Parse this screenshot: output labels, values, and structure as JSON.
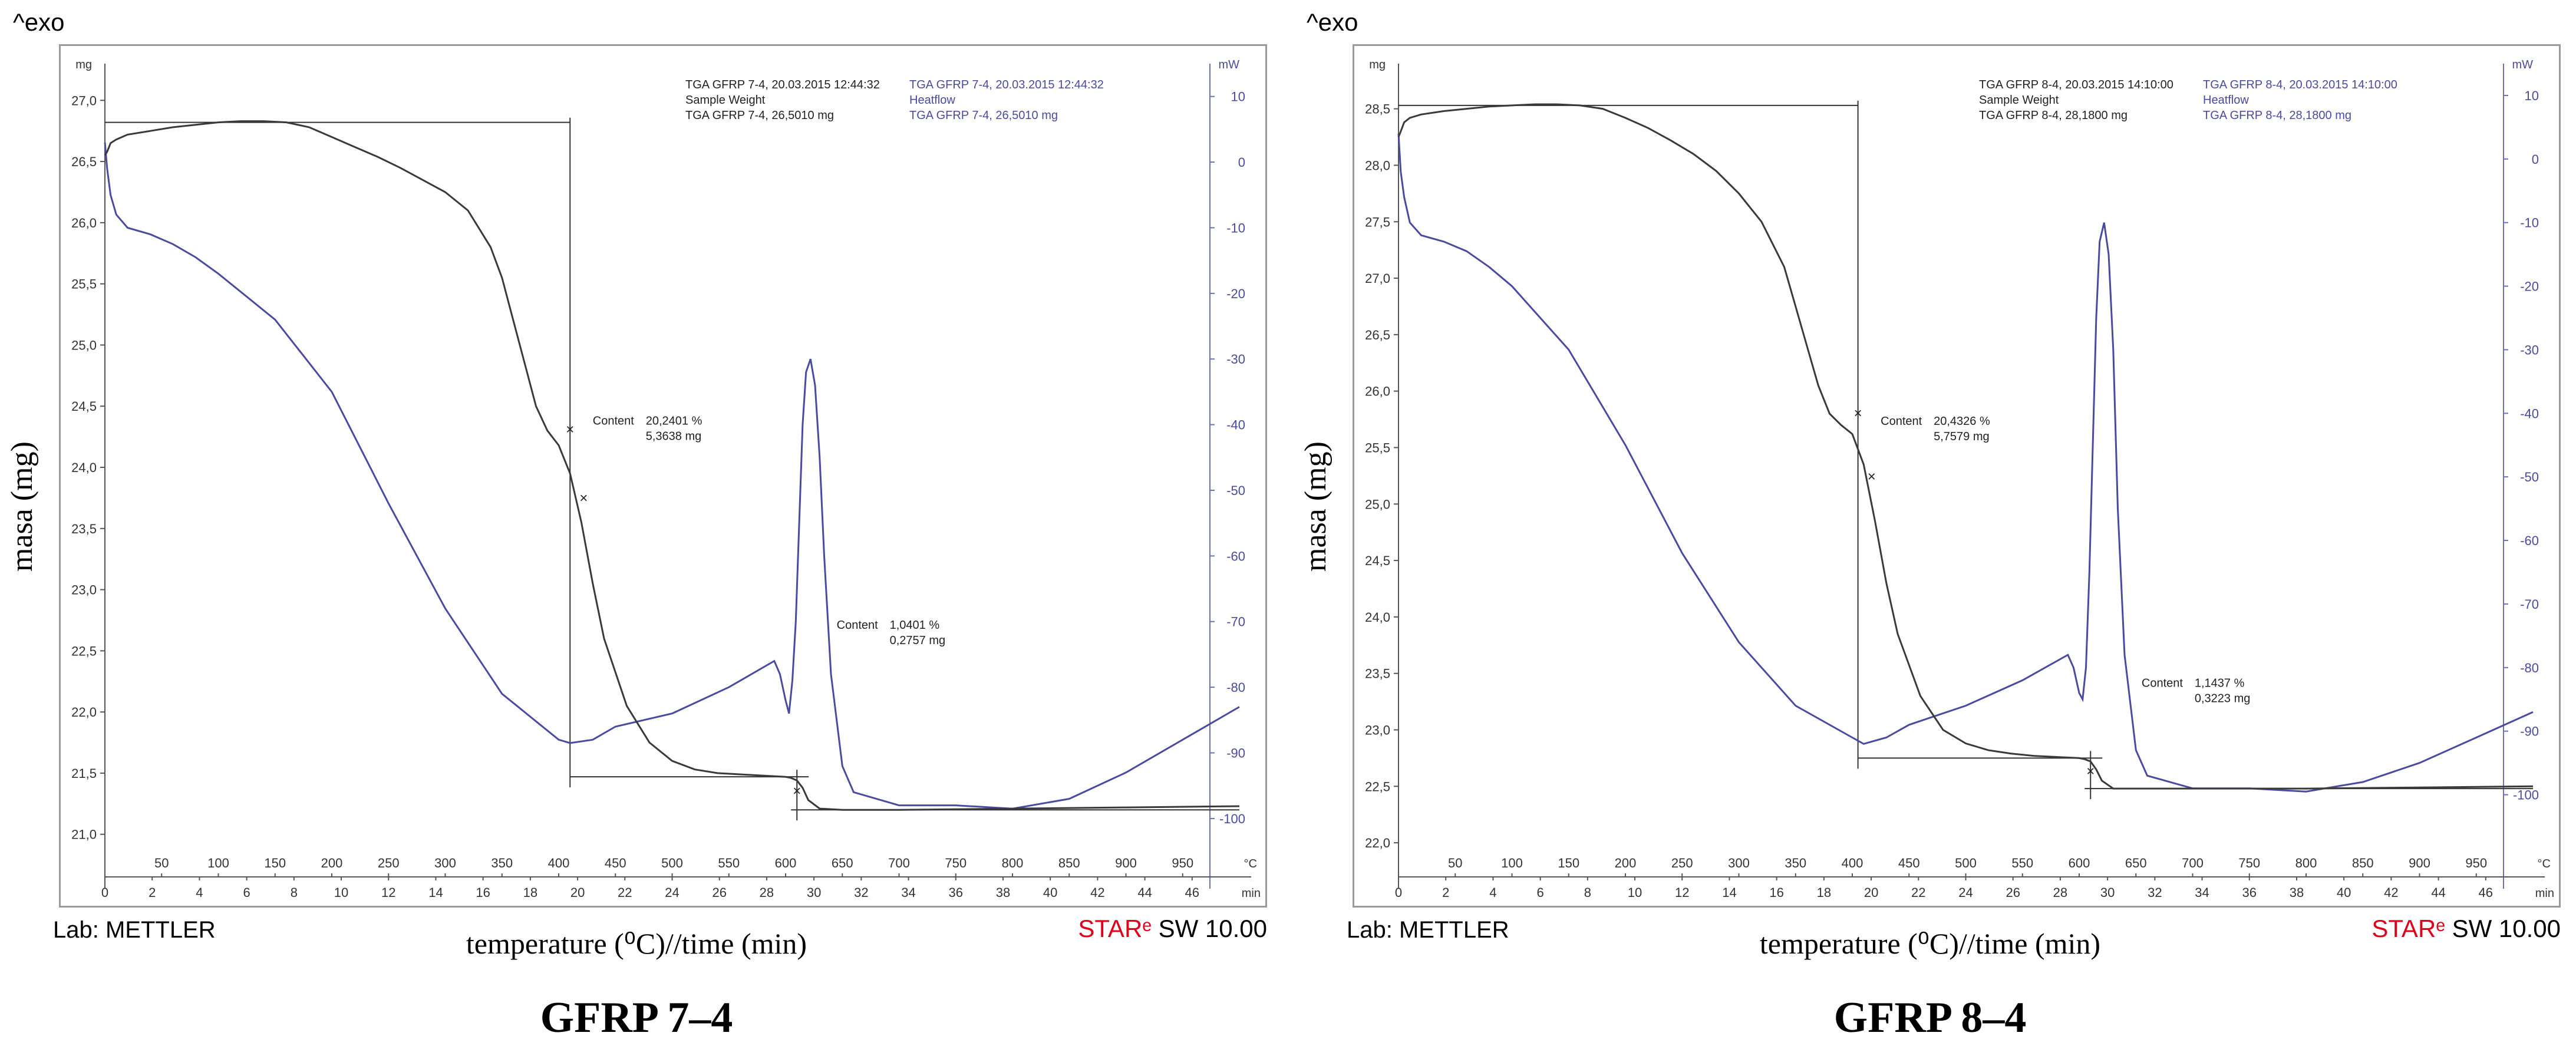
{
  "figure": {
    "brand_star": "STARᵉ",
    "brand_sw": "SW 10.00",
    "exo_label": "^exo",
    "lab_label": "Lab: METTLER",
    "ylabel": "masa (mg)",
    "xlabel": "temperature (⁰C)//time (min)"
  },
  "chart_data": [
    {
      "type": "line",
      "caption": "GFRP 7–4",
      "legend_black": [
        "TGA GFRP 7-4, 20.03.2015 12:44:32",
        "Sample Weight",
        "TGA GFRP 7-4, 26,5010 mg"
      ],
      "legend_blue": [
        "TGA GFRP 7-4, 20.03.2015 12:44:32",
        "Heatflow",
        "TGA GFRP 7-4, 26,5010 mg"
      ],
      "y_unit": "mg",
      "y2_unit": "mW",
      "ylim": [
        20.7,
        27.3
      ],
      "y2lim": [
        -108,
        15
      ],
      "xlim_temp": [
        0,
        1000
      ],
      "xlim_time": [
        0,
        48
      ],
      "y_ticks": [
        "27,0",
        "26,5",
        "26,0",
        "25,5",
        "25,0",
        "24,5",
        "24,0",
        "23,5",
        "23,0",
        "22,5",
        "22,0",
        "21,5",
        "21,0"
      ],
      "y_tick_values": [
        27.0,
        26.5,
        26.0,
        25.5,
        25.0,
        24.5,
        24.0,
        23.5,
        23.0,
        22.5,
        22.0,
        21.5,
        21.0
      ],
      "y2_ticks": [
        "10",
        "0",
        "-10",
        "-20",
        "-30",
        "-40",
        "-50",
        "-60",
        "-70",
        "-80",
        "-90",
        "-100"
      ],
      "y2_tick_values": [
        10,
        0,
        -10,
        -20,
        -30,
        -40,
        -50,
        -60,
        -70,
        -80,
        -90,
        -100
      ],
      "temp_ticks": [
        "50",
        "100",
        "150",
        "200",
        "250",
        "300",
        "350",
        "400",
        "450",
        "500",
        "550",
        "600",
        "650",
        "700",
        "750",
        "800",
        "850",
        "900",
        "950"
      ],
      "temp_tick_values": [
        50,
        100,
        150,
        200,
        250,
        300,
        350,
        400,
        450,
        500,
        550,
        600,
        650,
        700,
        750,
        800,
        850,
        900,
        950
      ],
      "temp_end_label": "°C",
      "time_ticks": [
        "0",
        "2",
        "4",
        "6",
        "8",
        "10",
        "12",
        "14",
        "16",
        "18",
        "20",
        "22",
        "24",
        "26",
        "28",
        "30",
        "32",
        "34",
        "36",
        "38",
        "40",
        "42",
        "44",
        "46"
      ],
      "time_tick_values": [
        0,
        2,
        4,
        6,
        8,
        10,
        12,
        14,
        16,
        18,
        20,
        22,
        24,
        26,
        28,
        30,
        32,
        34,
        36,
        38,
        40,
        42,
        44,
        46
      ],
      "time_end_label": "min",
      "annotation1": [
        "Content",
        "20,2401 %",
        "5,3638 mg"
      ],
      "annotation1_pos": [
        430,
        24.35
      ],
      "annotation2": [
        "Content",
        "1,0401 %",
        "0,2757 mg"
      ],
      "annotation2_pos": [
        645,
        22.68
      ],
      "step1": {
        "x": 410,
        "y_top": 26.82,
        "y_bottom": 21.47,
        "x_left": 0
      },
      "step2": {
        "x": 610,
        "y_top": 21.47,
        "y_bottom": 21.2,
        "x_right": 1000
      },
      "mass_series": {
        "name": "Sample Weight",
        "x": [
          0,
          2,
          5,
          10,
          20,
          40,
          60,
          80,
          100,
          120,
          140,
          160,
          180,
          200,
          220,
          240,
          260,
          280,
          300,
          320,
          340,
          350,
          360,
          370,
          380,
          390,
          400,
          410,
          420,
          430,
          440,
          460,
          480,
          500,
          520,
          540,
          560,
          580,
          600,
          605,
          610,
          615,
          620,
          630,
          650,
          700,
          800,
          900,
          1000
        ],
        "y": [
          26.55,
          26.58,
          26.65,
          26.68,
          26.72,
          26.75,
          26.78,
          26.8,
          26.82,
          26.83,
          26.83,
          26.82,
          26.78,
          26.7,
          26.62,
          26.54,
          26.45,
          26.35,
          26.25,
          26.1,
          25.8,
          25.55,
          25.2,
          24.85,
          24.5,
          24.3,
          24.18,
          23.95,
          23.55,
          23.05,
          22.6,
          22.05,
          21.75,
          21.6,
          21.53,
          21.5,
          21.49,
          21.48,
          21.47,
          21.46,
          21.44,
          21.38,
          21.28,
          21.21,
          21.2,
          21.2,
          21.21,
          21.22,
          21.23
        ]
      },
      "heatflow_series": {
        "name": "Heatflow",
        "x": [
          0,
          2,
          5,
          10,
          20,
          40,
          60,
          80,
          100,
          150,
          200,
          250,
          300,
          350,
          400,
          410,
          430,
          450,
          500,
          550,
          590,
          595,
          600,
          603,
          606,
          609,
          612,
          615,
          618,
          622,
          626,
          630,
          634,
          640,
          650,
          660,
          700,
          750,
          800,
          850,
          900,
          950,
          1000
        ],
        "y": [
          3,
          -1,
          -5,
          -8,
          -10,
          -11,
          -12.5,
          -14.5,
          -17,
          -24,
          -35,
          -52,
          -68,
          -81,
          -88,
          -88.5,
          -88,
          -86,
          -84,
          -80,
          -76,
          -78,
          -82,
          -84,
          -79,
          -70,
          -55,
          -40,
          -32,
          -30,
          -34,
          -45,
          -60,
          -78,
          -92,
          -96,
          -98,
          -98,
          -98.5,
          -97,
          -93,
          -88,
          -83
        ]
      }
    },
    {
      "type": "line",
      "caption": "GFRP 8–4",
      "legend_black": [
        "TGA GFRP 8-4, 20.03.2015 14:10:00",
        "Sample Weight",
        "TGA GFRP 8-4, 28,1800 mg"
      ],
      "legend_blue": [
        "TGA GFRP 8-4, 20.03.2015 14:10:00",
        "Heatflow",
        "TGA GFRP 8-4, 28,1800 mg"
      ],
      "y_unit": "mg",
      "y2_unit": "mW",
      "ylim": [
        21.75,
        28.9
      ],
      "y2lim": [
        -112,
        15
      ],
      "xlim_temp": [
        0,
        1000
      ],
      "xlim_time": [
        0,
        48
      ],
      "y_ticks": [
        "28,5",
        "28,0",
        "27,5",
        "27,0",
        "26,5",
        "26,0",
        "25,5",
        "25,0",
        "24,5",
        "24,0",
        "23,5",
        "23,0",
        "22,5",
        "22,0"
      ],
      "y_tick_values": [
        28.5,
        28.0,
        27.5,
        27.0,
        26.5,
        26.0,
        25.5,
        25.0,
        24.5,
        24.0,
        23.5,
        23.0,
        22.5,
        22.0
      ],
      "y2_ticks": [
        "10",
        "0",
        "-10",
        "-20",
        "-30",
        "-40",
        "-50",
        "-60",
        "-70",
        "-80",
        "-90",
        "-100"
      ],
      "y2_tick_values": [
        10,
        0,
        -10,
        -20,
        -30,
        -40,
        -50,
        -60,
        -70,
        -80,
        -90,
        -100
      ],
      "temp_ticks": [
        "50",
        "100",
        "150",
        "200",
        "250",
        "300",
        "350",
        "400",
        "450",
        "500",
        "550",
        "600",
        "650",
        "700",
        "750",
        "800",
        "850",
        "900",
        "950"
      ],
      "temp_tick_values": [
        50,
        100,
        150,
        200,
        250,
        300,
        350,
        400,
        450,
        500,
        550,
        600,
        650,
        700,
        750,
        800,
        850,
        900,
        950
      ],
      "temp_end_label": "°C",
      "time_ticks": [
        "0",
        "2",
        "4",
        "6",
        "8",
        "10",
        "12",
        "14",
        "16",
        "18",
        "20",
        "22",
        "24",
        "26",
        "28",
        "30",
        "32",
        "34",
        "36",
        "38",
        "40",
        "42",
        "44",
        "46"
      ],
      "time_tick_values": [
        0,
        2,
        4,
        6,
        8,
        10,
        12,
        14,
        16,
        18,
        20,
        22,
        24,
        26,
        28,
        30,
        32,
        34,
        36,
        38,
        40,
        42,
        44,
        46
      ],
      "time_end_label": "min",
      "annotation1": [
        "Content",
        "20,4326 %",
        "5,7579 mg"
      ],
      "annotation1_pos": [
        425,
        25.7
      ],
      "annotation2": [
        "Content",
        "1,1437 %",
        "0,3223 mg"
      ],
      "annotation2_pos": [
        655,
        23.38
      ],
      "step1": {
        "x": 405,
        "y_top": 28.53,
        "y_bottom": 22.75,
        "x_left": 0
      },
      "step2": {
        "x": 610,
        "y_top": 22.75,
        "y_bottom": 22.48,
        "x_right": 1000
      },
      "mass_series": {
        "name": "Sample Weight",
        "x": [
          0,
          2,
          5,
          10,
          20,
          40,
          60,
          80,
          100,
          120,
          140,
          160,
          180,
          200,
          220,
          240,
          260,
          280,
          300,
          320,
          340,
          350,
          360,
          370,
          380,
          390,
          400,
          410,
          420,
          430,
          440,
          460,
          480,
          500,
          520,
          540,
          560,
          580,
          600,
          605,
          610,
          615,
          620,
          630,
          650,
          700,
          800,
          900,
          1000
        ],
        "y": [
          28.25,
          28.3,
          28.38,
          28.42,
          28.45,
          28.48,
          28.5,
          28.52,
          28.53,
          28.54,
          28.54,
          28.53,
          28.5,
          28.42,
          28.33,
          28.22,
          28.1,
          27.95,
          27.75,
          27.5,
          27.1,
          26.75,
          26.4,
          26.05,
          25.8,
          25.7,
          25.62,
          25.35,
          24.85,
          24.3,
          23.85,
          23.3,
          23.0,
          22.88,
          22.82,
          22.79,
          22.77,
          22.76,
          22.75,
          22.74,
          22.72,
          22.65,
          22.55,
          22.48,
          22.48,
          22.48,
          22.48,
          22.49,
          22.5
        ]
      },
      "heatflow_series": {
        "name": "Heatflow",
        "x": [
          0,
          2,
          5,
          10,
          20,
          40,
          60,
          80,
          100,
          150,
          200,
          250,
          300,
          350,
          400,
          410,
          430,
          450,
          500,
          550,
          590,
          595,
          600,
          603,
          606,
          609,
          612,
          615,
          618,
          622,
          626,
          630,
          634,
          640,
          650,
          660,
          700,
          750,
          800,
          850,
          900,
          950,
          1000
        ],
        "y": [
          4,
          -2,
          -6,
          -10,
          -12,
          -13,
          -14.5,
          -17,
          -20,
          -30,
          -45,
          -62,
          -76,
          -86,
          -91,
          -92,
          -91,
          -89,
          -86,
          -82,
          -78,
          -80,
          -84,
          -85,
          -80,
          -65,
          -45,
          -25,
          -13,
          -10,
          -15,
          -30,
          -55,
          -78,
          -93,
          -97,
          -99,
          -99,
          -99.5,
          -98,
          -95,
          -91,
          -87
        ]
      }
    }
  ]
}
